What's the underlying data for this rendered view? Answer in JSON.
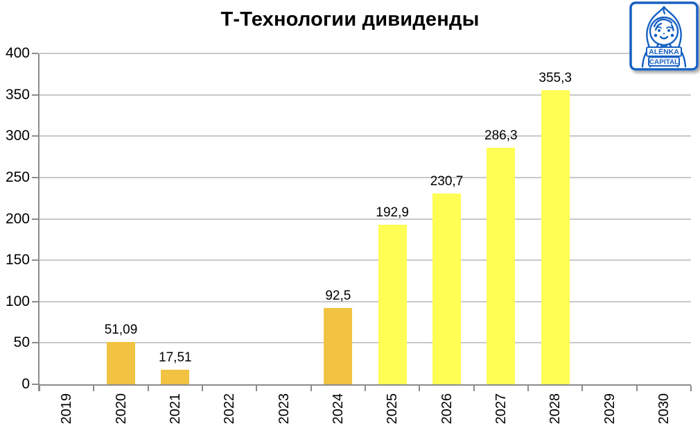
{
  "title": "Т-Технологии дивиденды",
  "logo": {
    "line1": "ALËNKA",
    "line2": "CAPITAL"
  },
  "chart_data": {
    "type": "bar",
    "title": "Т-Технологии дивиденды",
    "categories": [
      "2019",
      "2020",
      "2021",
      "2022",
      "2023",
      "2024",
      "2025",
      "2026",
      "2027",
      "2028",
      "2029",
      "2030"
    ],
    "values": [
      null,
      51.09,
      17.51,
      null,
      null,
      92.5,
      192.9,
      230.7,
      286.3,
      355.3,
      null,
      null
    ],
    "value_labels": [
      null,
      "51,09",
      "17,51",
      null,
      null,
      "92,5",
      "192,9",
      "230,7",
      "286,3",
      "355,3",
      null,
      null
    ],
    "bar_colors": [
      null,
      "#F2C342",
      "#F2C342",
      null,
      null,
      "#F2C342",
      "#FFFE55",
      "#FFFE55",
      "#FFFE55",
      "#FFFE55",
      null,
      null
    ],
    "series_meta": {
      "actual_color": "#F2C342",
      "forecast_color": "#FFFE55"
    },
    "xlabel": "",
    "ylabel": "",
    "ylim": [
      0,
      400
    ],
    "yticks": [
      0,
      50,
      100,
      150,
      200,
      250,
      300,
      350,
      400
    ],
    "grid": true,
    "legend": false,
    "decimal_separator": ","
  },
  "colors": {
    "grid": "#C8C8C8",
    "axis": "#8C8C8C",
    "logo_blue": "#1660C4",
    "title_text": "#000000"
  }
}
